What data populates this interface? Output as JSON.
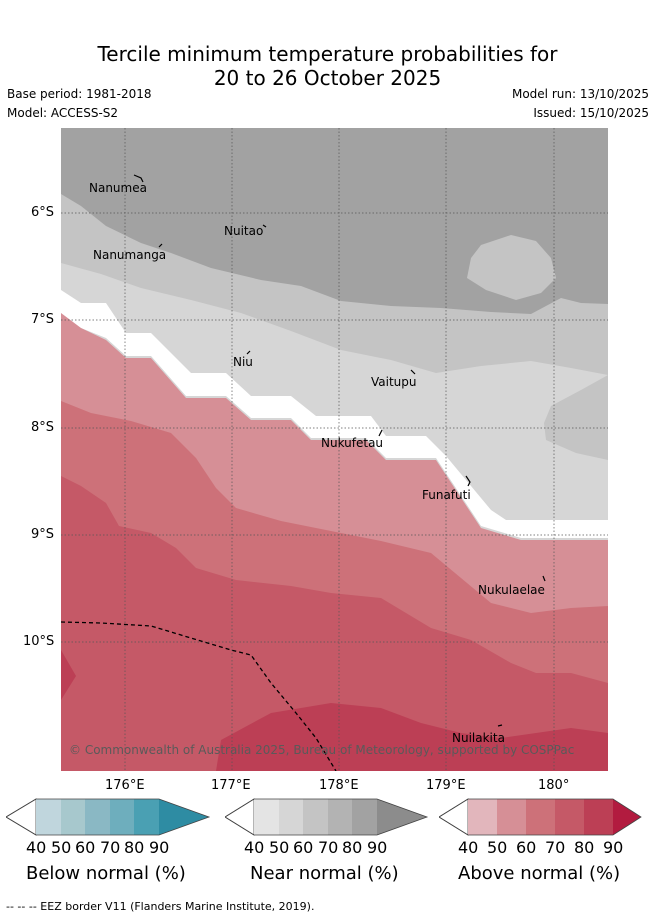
{
  "title": {
    "line1": "Tercile minimum temperature probabilities for",
    "line2": "20 to 26 October 2025"
  },
  "meta": {
    "base_period": "Base period: 1981-2018",
    "model": "Model: ACCESS-S2",
    "model_run": "Model run: 13/10/2025",
    "issued": "Issued: 15/10/2025"
  },
  "map": {
    "latitudes": [
      "6°S",
      "7°S",
      "8°S",
      "9°S",
      "10°S"
    ],
    "longitudes": [
      "176°E",
      "177°E",
      "178°E",
      "179°E",
      "180°"
    ],
    "islands": [
      "Nanumea",
      "Nuitao",
      "Nanumanga",
      "Niu",
      "Vaitupu",
      "Nukufetau",
      "Funafuti",
      "Nukulaelae",
      "Nuilakita"
    ],
    "copyright": "© Commonwealth of Australia 2025, Bureau of Meteorology, supported by COSPPac"
  },
  "colorbars": [
    {
      "title": "Below normal (%)",
      "ticks": [
        "40",
        "50",
        "60",
        "70",
        "80",
        "90"
      ],
      "colors": [
        "#c0d6dd",
        "#a7c8cd",
        "#8ab8c4",
        "#6eaebd",
        "#4aa0b3",
        "#2e8ca3"
      ]
    },
    {
      "title": "Near normal (%)",
      "ticks": [
        "40",
        "50",
        "60",
        "70",
        "80",
        "90"
      ],
      "colors": [
        "#e4e4e4",
        "#d6d6d6",
        "#c4c4c4",
        "#b3b3b3",
        "#a2a2a2",
        "#8c8c8c"
      ]
    },
    {
      "title": "Above normal (%)",
      "ticks": [
        "40",
        "50",
        "60",
        "70",
        "80",
        "90"
      ],
      "colors": [
        "#e2b6bc",
        "#d68f96",
        "#cd7179",
        "#c55967",
        "#bc3f55",
        "#b21b3f"
      ]
    }
  ],
  "footer": "--  --  -- EEZ border V11 (Flanders Marine Institute, 2019)."
}
